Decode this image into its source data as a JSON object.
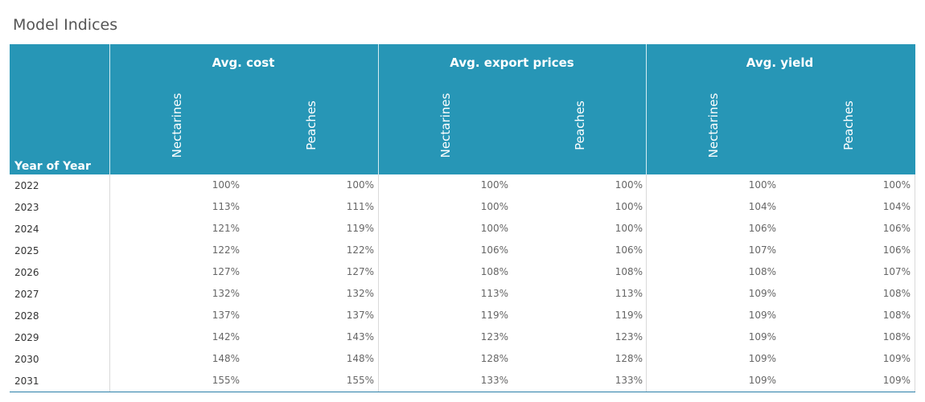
{
  "title": "Model Indices",
  "year_header": "Year of Year",
  "colors": {
    "header_bg": "#2796b6",
    "header_text": "#ffffff"
  },
  "groups": [
    {
      "label": "Avg. cost",
      "subs": [
        "Nectarines",
        "Peaches"
      ]
    },
    {
      "label": "Avg. export prices",
      "subs": [
        "Nectarines",
        "Peaches"
      ]
    },
    {
      "label": "Avg. yield",
      "subs": [
        "Nectarines",
        "Peaches"
      ]
    }
  ],
  "chart_data": {
    "type": "table",
    "columns": [
      "Avg. cost / Nectarines",
      "Avg. cost / Peaches",
      "Avg. export prices / Nectarines",
      "Avg. export prices / Peaches",
      "Avg. yield / Nectarines",
      "Avg. yield / Peaches"
    ],
    "rows": [
      {
        "year": "2022",
        "values": [
          "100%",
          "100%",
          "100%",
          "100%",
          "100%",
          "100%"
        ]
      },
      {
        "year": "2023",
        "values": [
          "113%",
          "111%",
          "100%",
          "100%",
          "104%",
          "104%"
        ]
      },
      {
        "year": "2024",
        "values": [
          "121%",
          "119%",
          "100%",
          "100%",
          "106%",
          "106%"
        ]
      },
      {
        "year": "2025",
        "values": [
          "122%",
          "122%",
          "106%",
          "106%",
          "107%",
          "106%"
        ]
      },
      {
        "year": "2026",
        "values": [
          "127%",
          "127%",
          "108%",
          "108%",
          "108%",
          "107%"
        ]
      },
      {
        "year": "2027",
        "values": [
          "132%",
          "132%",
          "113%",
          "113%",
          "109%",
          "108%"
        ]
      },
      {
        "year": "2028",
        "values": [
          "137%",
          "137%",
          "119%",
          "119%",
          "109%",
          "108%"
        ]
      },
      {
        "year": "2029",
        "values": [
          "142%",
          "143%",
          "123%",
          "123%",
          "109%",
          "108%"
        ]
      },
      {
        "year": "2030",
        "values": [
          "148%",
          "148%",
          "128%",
          "128%",
          "109%",
          "109%"
        ]
      },
      {
        "year": "2031",
        "values": [
          "155%",
          "155%",
          "133%",
          "133%",
          "109%",
          "109%"
        ]
      }
    ]
  }
}
